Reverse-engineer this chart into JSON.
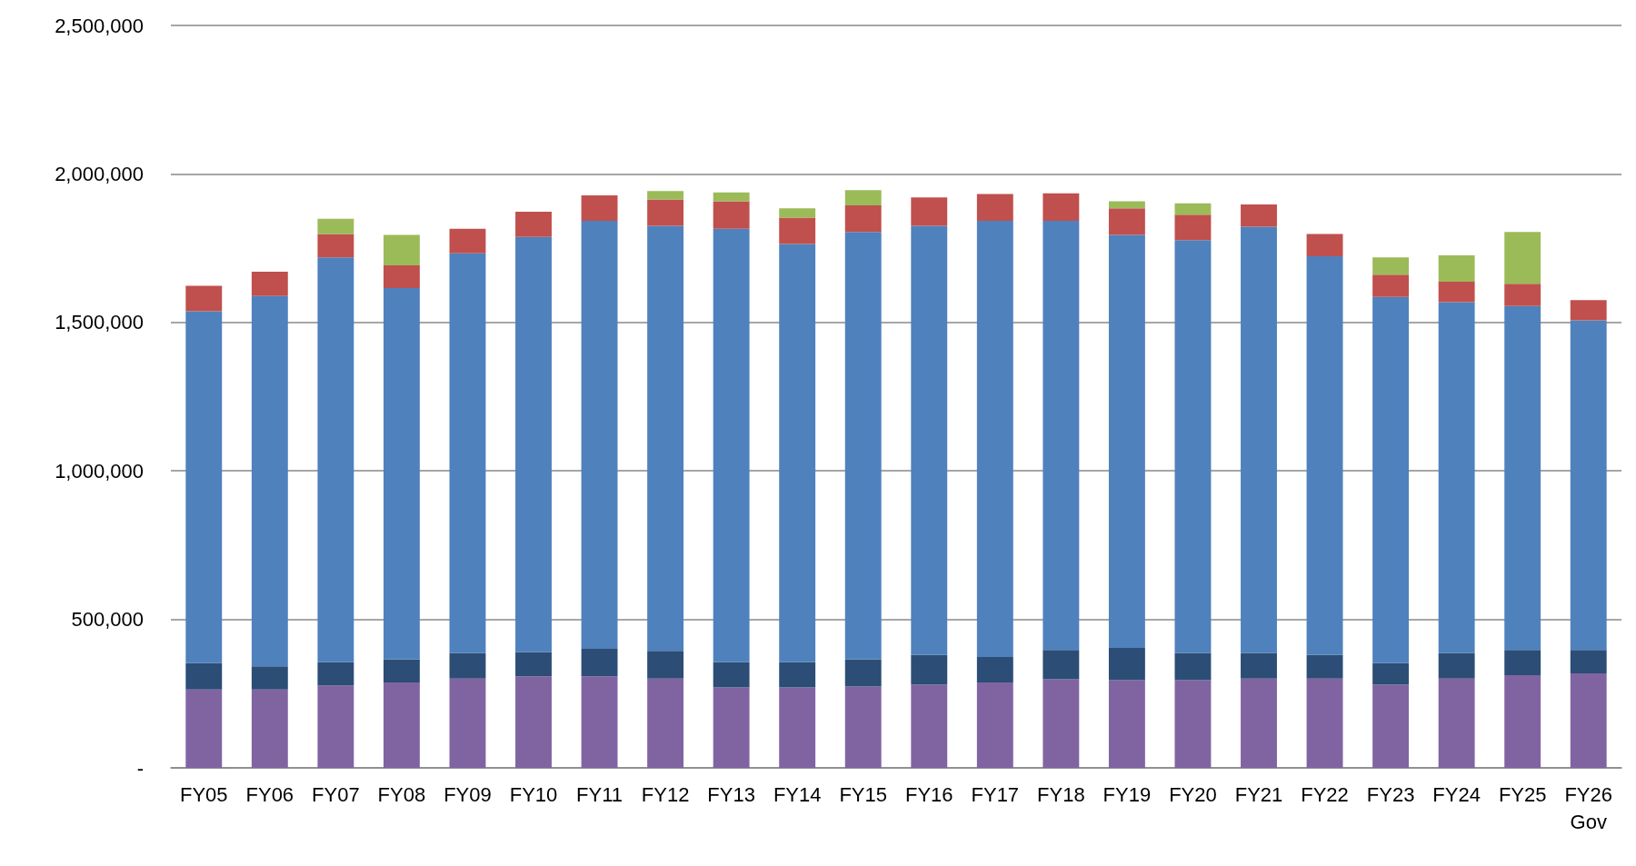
{
  "chart_data": {
    "type": "bar",
    "stacked": true,
    "grid": "y",
    "categories": [
      "FY05",
      "FY06",
      "FY07",
      "FY08",
      "FY09",
      "FY10",
      "FY11",
      "FY12",
      "FY13",
      "FY14",
      "FY15",
      "FY16",
      "FY17",
      "FY18",
      "FY19",
      "FY20",
      "FY21",
      "FY22",
      "FY23",
      "FY24",
      "FY25",
      "FY26\nGov"
    ],
    "ylim": [
      0,
      2500000
    ],
    "yticks": [
      {
        "value": 0,
        "label": "-"
      },
      {
        "value": 500000,
        "label": "500,000"
      },
      {
        "value": 1000000,
        "label": "1,000,000"
      },
      {
        "value": 1500000,
        "label": "1,500,000"
      },
      {
        "value": 2000000,
        "label": "2,000,000"
      },
      {
        "value": 2500000,
        "label": "2,500,000"
      }
    ],
    "series": [
      {
        "color": "#8064a2",
        "values": [
          264000,
          264000,
          277000,
          288000,
          301000,
          308000,
          308000,
          301000,
          271000,
          271000,
          274000,
          281000,
          288000,
          298000,
          295000,
          295000,
          301000,
          301000,
          281000,
          301000,
          312000,
          318000
        ]
      },
      {
        "color": "#2c4d75",
        "values": [
          89000,
          78000,
          79000,
          78000,
          86000,
          82000,
          93000,
          93000,
          85000,
          85000,
          92000,
          99000,
          85000,
          99000,
          109000,
          92000,
          86000,
          79000,
          72000,
          86000,
          85000,
          79000
        ]
      },
      {
        "color": "#4f81bd",
        "values": [
          1185000,
          1247000,
          1363000,
          1250000,
          1346000,
          1398000,
          1441000,
          1431000,
          1459000,
          1408000,
          1439000,
          1445000,
          1469000,
          1445000,
          1391000,
          1390000,
          1435000,
          1343000,
          1233000,
          1181000,
          1158000,
          1110000
        ]
      },
      {
        "color": "#c0504d",
        "values": [
          85000,
          82000,
          79000,
          76000,
          82000,
          85000,
          86000,
          89000,
          93000,
          89000,
          89000,
          96000,
          90000,
          93000,
          89000,
          86000,
          75000,
          75000,
          75000,
          69000,
          75000,
          68000
        ]
      },
      {
        "color": "#9bbb59",
        "values": [
          null,
          null,
          51000,
          103000,
          null,
          null,
          null,
          28000,
          30000,
          31000,
          51000,
          null,
          null,
          null,
          24000,
          38000,
          null,
          null,
          58000,
          89000,
          175000,
          null
        ]
      }
    ]
  }
}
